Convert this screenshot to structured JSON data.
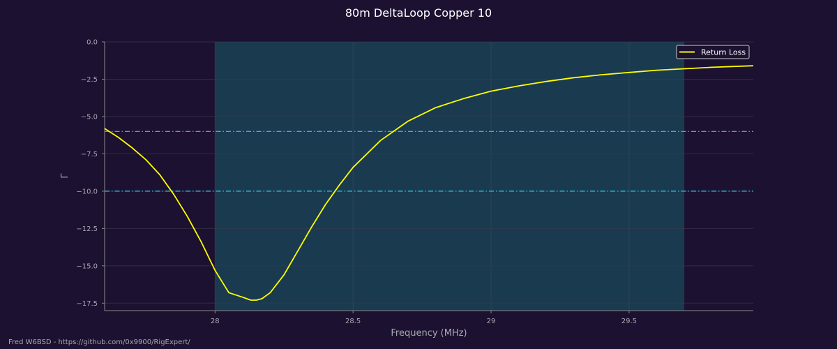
{
  "chart_data": {
    "type": "line",
    "title": "80m DeltaLoop Copper 10",
    "xlabel": "Frequency (MHz)",
    "ylabel": "Γ",
    "xlim": [
      27.6,
      29.95
    ],
    "ylim": [
      -18.0,
      0.0
    ],
    "x_ticks": [
      28,
      28.5,
      29,
      29.5
    ],
    "x_tick_labels": [
      "28",
      "28.5",
      "29",
      "29.5"
    ],
    "y_ticks": [
      0.0,
      -2.5,
      -5.0,
      -7.5,
      -10.0,
      -12.5,
      -15.0,
      -17.5
    ],
    "y_tick_labels": [
      "0.0",
      "−2.5",
      "−5.0",
      "−7.5",
      "−10.0",
      "−12.5",
      "−15.0",
      "−17.5"
    ],
    "grid": true,
    "legend_position": "top-right",
    "band": {
      "x_start": 28.0,
      "x_end": 29.7,
      "color": "#1a3a50"
    },
    "reference_lines": [
      {
        "y": -6.0,
        "color": "#22d3ee",
        "style": "dash-dot"
      },
      {
        "y": -10.0,
        "color": "#22d3ee",
        "style": "dash-dot"
      }
    ],
    "series": [
      {
        "name": "Return Loss",
        "color": "#ffff00",
        "x": [
          27.6,
          27.65,
          27.7,
          27.75,
          27.8,
          27.85,
          27.9,
          27.95,
          28.0,
          28.05,
          28.1,
          28.13,
          28.15,
          28.17,
          28.2,
          28.25,
          28.3,
          28.35,
          28.4,
          28.45,
          28.5,
          28.6,
          28.7,
          28.8,
          28.9,
          29.0,
          29.1,
          29.2,
          29.3,
          29.4,
          29.5,
          29.6,
          29.7,
          29.8,
          29.95
        ],
        "y": [
          -5.8,
          -6.4,
          -7.1,
          -7.9,
          -8.9,
          -10.2,
          -11.7,
          -13.4,
          -15.3,
          -16.8,
          -17.1,
          -17.3,
          -17.3,
          -17.2,
          -16.8,
          -15.6,
          -14.0,
          -12.4,
          -10.9,
          -9.6,
          -8.4,
          -6.6,
          -5.3,
          -4.4,
          -3.8,
          -3.3,
          -2.95,
          -2.65,
          -2.4,
          -2.2,
          -2.05,
          -1.9,
          -1.8,
          -1.7,
          -1.6
        ]
      }
    ]
  },
  "footer": "Fred W6BSD - https://github.com/0x9900/RigExpert/"
}
